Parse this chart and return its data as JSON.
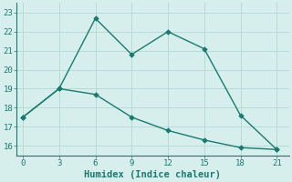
{
  "line1_x": [
    0,
    3,
    6,
    9,
    12,
    15,
    18,
    21
  ],
  "line1_y": [
    17.5,
    19.0,
    22.7,
    20.8,
    22.0,
    21.1,
    17.6,
    15.8
  ],
  "line2_x": [
    0,
    3,
    6,
    9,
    12,
    15,
    18,
    21
  ],
  "line2_y": [
    17.5,
    19.0,
    18.7,
    17.5,
    16.8,
    16.3,
    15.9,
    15.8
  ],
  "line_color": "#1a7a6e",
  "bg_color": "#d6efed",
  "grid_color": "#b8dbd8",
  "xlabel": "Humidex (Indice chaleur)",
  "xlim": [
    -0.5,
    22
  ],
  "ylim": [
    15.5,
    23.5
  ],
  "xticks": [
    0,
    3,
    6,
    9,
    12,
    15,
    18,
    21
  ],
  "yticks": [
    16,
    17,
    18,
    19,
    20,
    21,
    22,
    23
  ],
  "xlabel_fontsize": 7.5,
  "tick_fontsize": 6.5
}
